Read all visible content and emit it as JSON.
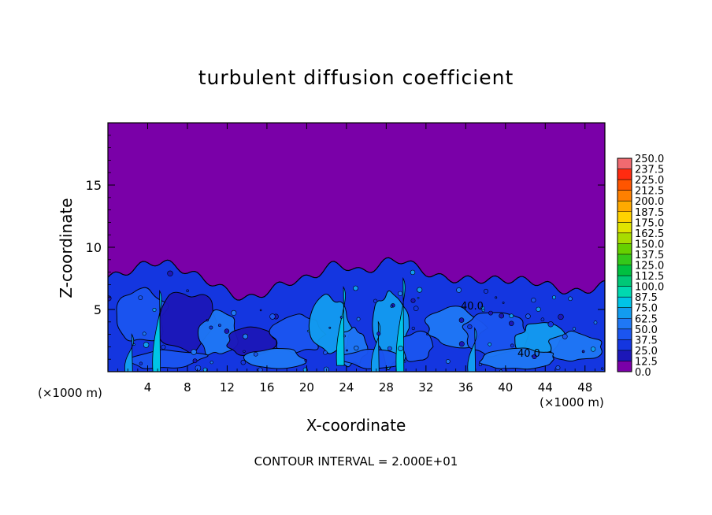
{
  "chart_data": {
    "type": "heatmap",
    "title": "turbulent diffusion coefficient",
    "xlabel": "X-coordinate",
    "ylabel": "Z-coordinate",
    "x_unit_label": "(×1000 m)",
    "xlim": [
      0,
      50
    ],
    "ylim": [
      0,
      20
    ],
    "x_ticks": [
      4,
      8,
      12,
      16,
      20,
      24,
      28,
      32,
      36,
      40,
      44,
      48
    ],
    "y_ticks": [
      5,
      10,
      15
    ],
    "footer": "CONTOUR INTERVAL = 2.000E+01",
    "contour_labels": [
      "40.0",
      "40.0"
    ],
    "colorbar": {
      "levels": [
        "0.0",
        "12.5",
        "25.0",
        "37.5",
        "50.0",
        "62.5",
        "75.0",
        "87.5",
        "100.0",
        "112.5",
        "125.0",
        "137.5",
        "150.0",
        "162.5",
        "175.0",
        "187.5",
        "200.0",
        "212.5",
        "225.0",
        "237.5",
        "250.0"
      ],
      "colors": [
        "#7a00a8",
        "#1c17b8",
        "#1436e0",
        "#1b55f0",
        "#1f78f6",
        "#129cf0",
        "#00c4e6",
        "#00d9b0",
        "#00c877",
        "#00c040",
        "#34c81a",
        "#66d000",
        "#a8dc00",
        "#e0e400",
        "#ffd200",
        "#ffaa00",
        "#ff8000",
        "#ff5500",
        "#ff2b10",
        "#f06a70"
      ]
    },
    "background_color": "#7a00a8",
    "turbulent_layer_top_approx": 8,
    "turbulent_layer_max": 9
  }
}
